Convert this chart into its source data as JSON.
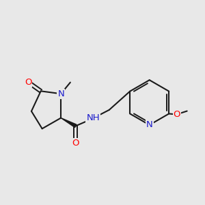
{
  "background_color": "#e8e8e8",
  "bond_color": "#1a1a1a",
  "atom_colors": {
    "O": "#ff0000",
    "N": "#1a1acc",
    "H": "#3a9a6a",
    "C": "#1a1a1a"
  },
  "font_size_atom": 9.5,
  "figsize": [
    3.0,
    3.0
  ],
  "dpi": 100,
  "xlim": [
    0.0,
    3.0
  ],
  "ylim": [
    0.5,
    2.8
  ]
}
